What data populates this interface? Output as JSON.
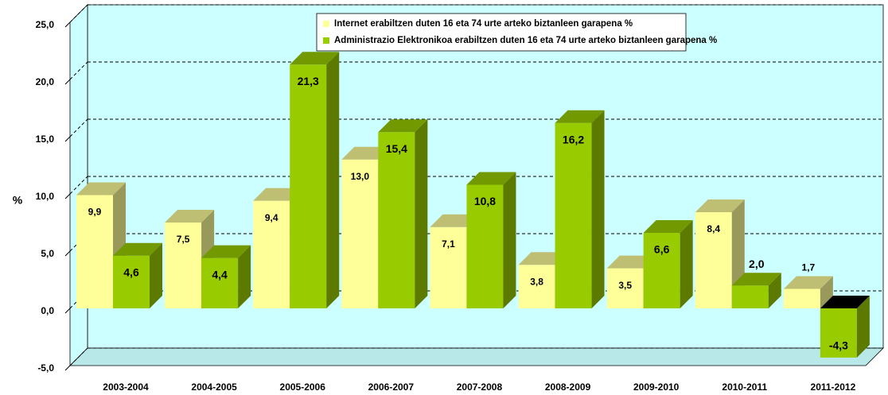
{
  "chart_data": {
    "type": "bar3d",
    "y_label": "%",
    "categories": [
      "2003-2004",
      "2004-2005",
      "2005-2006",
      "2006-2007",
      "2007-2008",
      "2008-2009",
      "2009-2010",
      "2010-2011",
      "2011-2012"
    ],
    "series": [
      {
        "name": "Internet erabiltzen duten 16 eta 74 urte arteko biztanleen garapena %",
        "color": "#ffff99",
        "values": [
          9.9,
          7.5,
          9.4,
          13.0,
          7.1,
          3.8,
          3.5,
          8.4,
          1.7
        ],
        "value_labels": [
          "9,9",
          "7,5",
          "9,4",
          "13,0",
          "7,1",
          "3,8",
          "3,5",
          "8,4",
          "1,7"
        ]
      },
      {
        "name": "Administrazio Elektronikoa erabiltzen duten 16 eta 74 urte arteko biztanleen garapena %",
        "color": "#99cc00",
        "values": [
          4.6,
          4.4,
          21.3,
          15.4,
          10.8,
          16.2,
          6.6,
          2.0,
          -4.3
        ],
        "value_labels": [
          "4,6",
          "4,4",
          "21,3",
          "15,4",
          "10,8",
          "16,2",
          "6,6",
          "2,0",
          "-4,3"
        ]
      }
    ],
    "ylim": [
      -5,
      25
    ],
    "yticks": [
      {
        "value": -5,
        "label": "-5,0"
      },
      {
        "value": 0,
        "label": "0,0"
      },
      {
        "value": 5,
        "label": "5,0"
      },
      {
        "value": 10,
        "label": "10,0"
      },
      {
        "value": 15,
        "label": "15,0"
      },
      {
        "value": 20,
        "label": "20,0"
      },
      {
        "value": 25,
        "label": "25,0"
      }
    ],
    "grid": true,
    "legend": "top-right"
  }
}
